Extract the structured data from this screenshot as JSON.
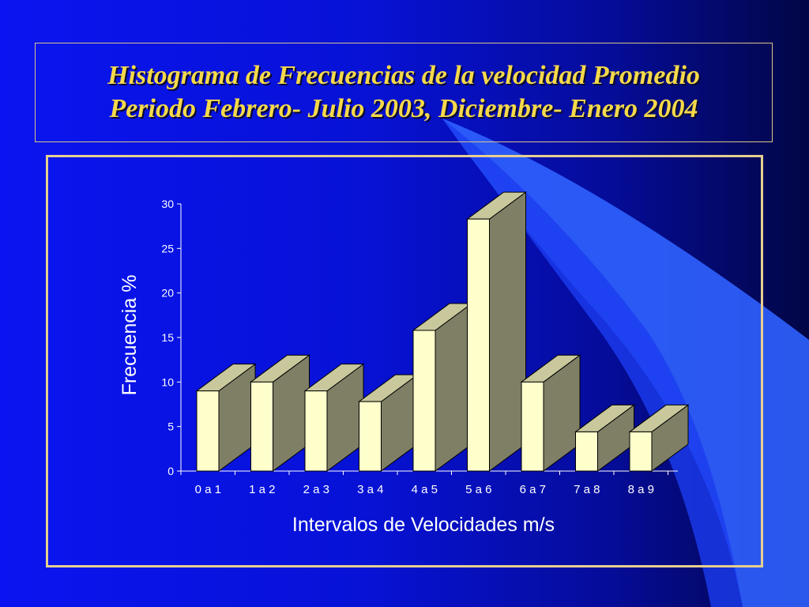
{
  "slide": {
    "title_lines": [
      "Histograma de Frecuencias de la velocidad Promedio",
      "Periodo Febrero- Julio 2003, Diciembre- Enero 2004"
    ]
  },
  "colors": {
    "bar_front": "#ffffcc",
    "bar_top": "#c8c89c",
    "bar_side": "#7f7f66",
    "frame": "#e6cf90",
    "title": "#f5d94a"
  },
  "chart_data": {
    "type": "bar",
    "title": "",
    "xlabel": "Intervalos de Velocidades m/s",
    "ylabel": "Frecuencia %",
    "ylim": [
      0,
      30
    ],
    "yticks": [
      0,
      5,
      10,
      15,
      20,
      25,
      30
    ],
    "categories": [
      "0 a 1",
      "1 a 2",
      "2 a 3",
      "3 a 4",
      "4 a 5",
      "5 a 6",
      "6 a 7",
      "7 a  8",
      "8 a 9"
    ],
    "values": [
      9,
      10,
      9,
      7.8,
      15.8,
      28.3,
      10,
      4.4,
      4.4
    ],
    "grid": false,
    "legend": "none",
    "style": "3d-column"
  }
}
